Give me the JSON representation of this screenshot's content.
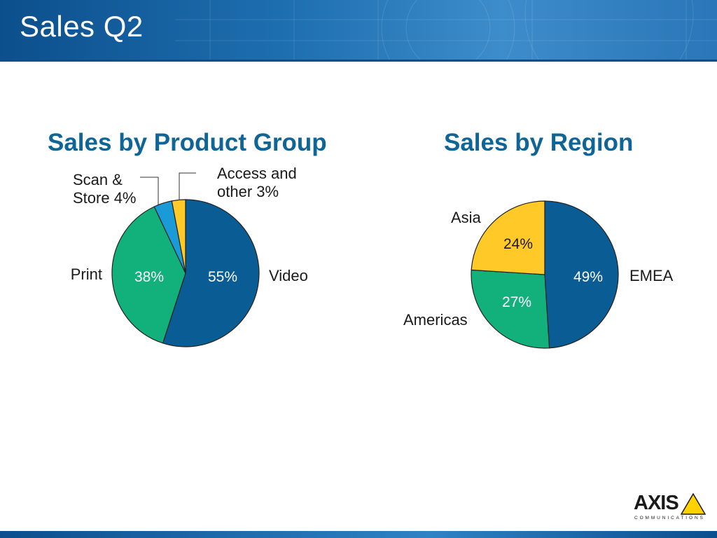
{
  "slide": {
    "title": "Sales Q2"
  },
  "logo": {
    "name": "AXIS",
    "subtitle": "COMMUNICATIONS"
  },
  "chart_data": [
    {
      "type": "pie",
      "title": "Sales by Product Group",
      "slices": [
        {
          "label": "Video",
          "value": 55,
          "value_text": "55%",
          "color": "#0a5c94"
        },
        {
          "label": "Print",
          "value": 38,
          "value_text": "38%",
          "color": "#12b07a"
        },
        {
          "label": "Scan & Store 4%",
          "value": 4,
          "color": "#1a9ad6"
        },
        {
          "label": "Access and other 3%",
          "value": 3,
          "color": "#ffc928"
        }
      ]
    },
    {
      "type": "pie",
      "title": "Sales by Region",
      "slices": [
        {
          "label": "EMEA",
          "value": 49,
          "value_text": "49%",
          "color": "#0a5c94"
        },
        {
          "label": "Americas",
          "value": 27,
          "value_text": "27%",
          "color": "#12b07a"
        },
        {
          "label": "Asia",
          "value": 24,
          "value_text": "24%",
          "color": "#ffc928"
        }
      ]
    }
  ]
}
